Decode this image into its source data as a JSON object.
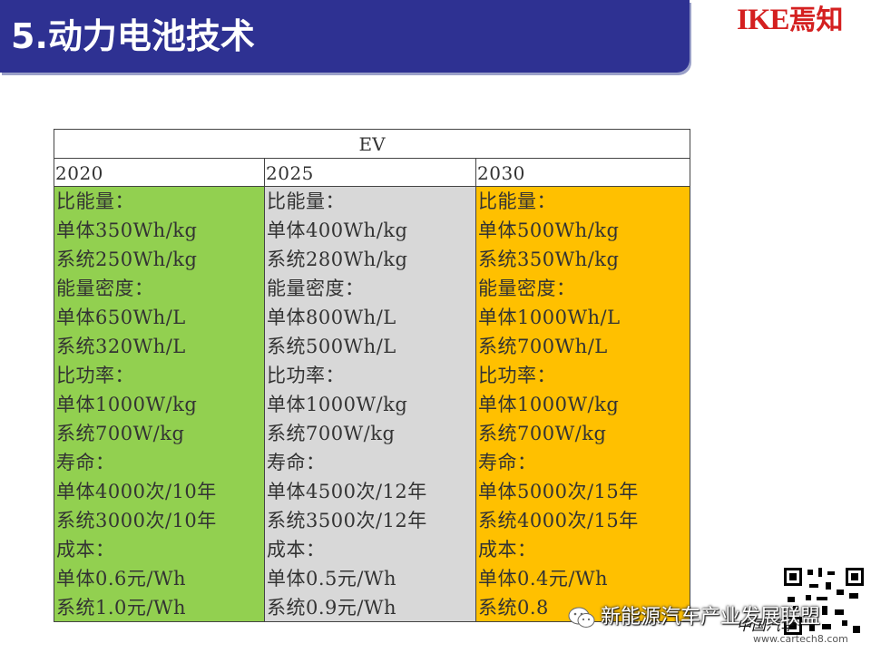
{
  "title": "5.动力电池技术",
  "logo": {
    "latin": "IKE",
    "cjk": "焉知"
  },
  "table": {
    "header": "EV",
    "columns": [
      {
        "year": "2020",
        "color": "#92d050",
        "lines": [
          "比能量：",
          "单体350Wh/kg",
          "系统250Wh/kg",
          "能量密度：",
          "单体650Wh/L",
          "系统320Wh/L",
          "比功率：",
          "单体1000W/kg",
          "系统700W/kg",
          "寿命：",
          "单体4000次/10年",
          "系统3000次/10年",
          "成本：",
          "单体0.6元/Wh",
          "系统1.0元/Wh"
        ]
      },
      {
        "year": "2025",
        "color": "#d8d8d8",
        "lines": [
          "比能量：",
          "单体400Wh/kg",
          "系统280Wh/kg",
          "能量密度：",
          "单体800Wh/L",
          "系统500Wh/L",
          "比功率：",
          "单体1000W/kg",
          "系统700W/kg",
          "寿命：",
          "单体4500次/12年",
          "系统3500次/12年",
          "成本：",
          "单体0.5元/Wh",
          "系统0.9元/Wh"
        ]
      },
      {
        "year": "2030",
        "color": "#ffc000",
        "lines": [
          "比能量：",
          "单体500Wh/kg",
          "系统350Wh/kg",
          "能量密度：",
          "单体1000Wh/L",
          "系统700Wh/L",
          "比功率：",
          "单体1000W/kg",
          "系统700W/kg",
          "寿命：",
          "单体5000次/15年",
          "系统4000次/15年",
          "成本：",
          "单体0.4元/Wh",
          "系统0.8"
        ]
      }
    ]
  },
  "watermark": {
    "text": "新能源汽车产业发展联盟",
    "icon": "wechat-icon",
    "brand": "中国汽车",
    "site": "www.cartech8.com"
  }
}
